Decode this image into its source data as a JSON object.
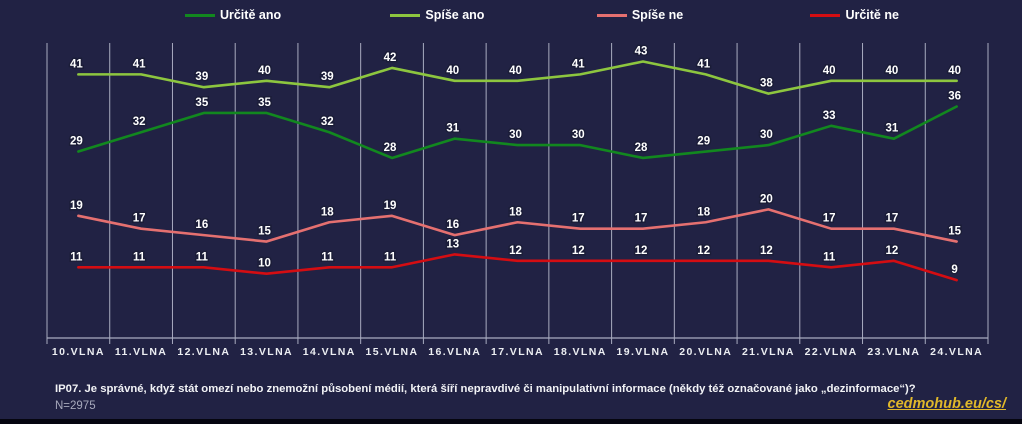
{
  "colors": {
    "background": "#212244",
    "gridline": "#a9acc0",
    "label_text": "#ffffff",
    "axis_text": "#eceef2",
    "link": "#e0b82a",
    "n_text": "#a7a9bc"
  },
  "chart_data": {
    "type": "line",
    "categories": [
      "10.VLNA",
      "11.VLNA",
      "12.VLNA",
      "13.VLNA",
      "14.VLNA",
      "15.VLNA",
      "16.VLNA",
      "17.VLNA",
      "18.VLNA",
      "19.VLNA",
      "20.VLNA",
      "21.VLNA",
      "22.VLNA",
      "23.VLNA",
      "24.VLNA"
    ],
    "series": [
      {
        "name": "Určitě ano",
        "color": "#12881f",
        "values": [
          29,
          32,
          35,
          35,
          32,
          28,
          31,
          30,
          30,
          28,
          29,
          30,
          33,
          31,
          36
        ]
      },
      {
        "name": "Spíše ano",
        "color": "#8dc63f",
        "values": [
          41,
          41,
          39,
          40,
          39,
          42,
          40,
          40,
          41,
          43,
          41,
          38,
          40,
          40,
          40
        ]
      },
      {
        "name": "Spíše ne",
        "color": "#e57070",
        "values": [
          19,
          17,
          16,
          15,
          18,
          19,
          16,
          18,
          17,
          17,
          18,
          20,
          17,
          17,
          15
        ]
      },
      {
        "name": "Určitě ne",
        "color": "#d40d12",
        "values": [
          11,
          11,
          11,
          10,
          11,
          11,
          13,
          12,
          12,
          12,
          12,
          12,
          11,
          12,
          9
        ]
      }
    ],
    "title": "",
    "xlabel": "",
    "ylabel": "",
    "ylim": [
      0,
      46
    ],
    "grid": "vertical",
    "legend_position": "top",
    "data_labels": true
  },
  "footer": {
    "question": "IP07. Je správné, když stát omezí nebo znemožní působení médií, která šíří nepravdivé či manipulativní informace (někdy též označované jako „dezinformace“)?",
    "n_label": "N=2975",
    "link": "cedmohub.eu/cs/"
  }
}
